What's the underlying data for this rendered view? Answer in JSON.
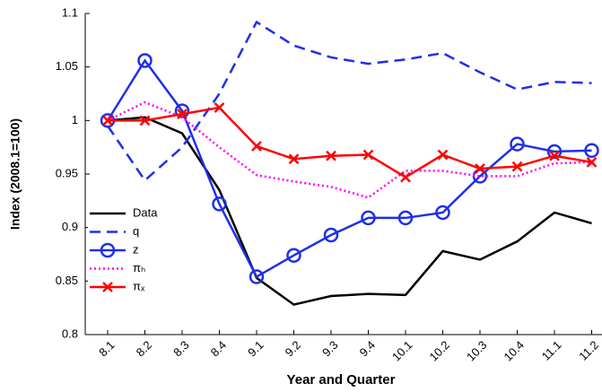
{
  "chart_data": {
    "type": "line",
    "x_label": "Year and Quarter",
    "y_label": "Index (2008.1=100)",
    "categories": [
      "8.1",
      "8.2",
      "8.3",
      "8.4",
      "9.1",
      "9.2",
      "9.3",
      "9.4",
      "10.1",
      "10.2",
      "10.3",
      "10.4",
      "11.1",
      "11.2"
    ],
    "ylim": [
      0.8,
      1.1
    ],
    "yticks": [
      0.8,
      0.85,
      0.9,
      0.95,
      1,
      1.05,
      1.1
    ],
    "grid": false,
    "legend": "lower-left",
    "series": [
      {
        "name": "Data",
        "color": "#000000",
        "dash": "solid",
        "marker": "none",
        "values": [
          1.0,
          1.003,
          0.988,
          0.935,
          0.853,
          0.828,
          0.836,
          0.838,
          0.837,
          0.878,
          0.87,
          0.887,
          0.914,
          0.904
        ]
      },
      {
        "name": "q",
        "color": "#1f2fe6",
        "dash": "dashed",
        "marker": "none",
        "values": [
          0.995,
          0.944,
          0.975,
          1.025,
          1.092,
          1.07,
          1.059,
          1.053,
          1.057,
          1.063,
          1.045,
          1.029,
          1.036,
          1.035
        ]
      },
      {
        "name": "z",
        "color": "#1f2fe6",
        "dash": "solid",
        "marker": "circle",
        "values": [
          1.0,
          1.056,
          1.009,
          0.922,
          0.854,
          0.874,
          0.893,
          0.909,
          0.909,
          0.914,
          0.948,
          0.978,
          0.971,
          0.972
        ]
      },
      {
        "name": "πₕ",
        "color": "#ff00ff",
        "dash": "dotted",
        "marker": "none",
        "values": [
          1.0,
          1.017,
          1.003,
          0.975,
          0.949,
          0.943,
          0.938,
          0.928,
          0.953,
          0.953,
          0.948,
          0.948,
          0.96,
          0.961
        ]
      },
      {
        "name": "πₓ",
        "color": "#ff0000",
        "dash": "solid",
        "marker": "x",
        "values": [
          1.0,
          1.0,
          1.006,
          1.012,
          0.976,
          0.964,
          0.967,
          0.968,
          0.947,
          0.968,
          0.955,
          0.957,
          0.967,
          0.961
        ]
      }
    ]
  }
}
